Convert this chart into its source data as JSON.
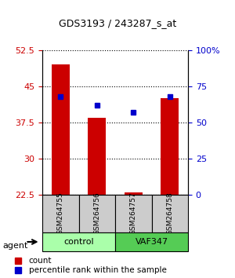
{
  "title": "GDS3193 / 243287_s_at",
  "samples": [
    "GSM264755",
    "GSM264756",
    "GSM264757",
    "GSM264758"
  ],
  "groups": [
    "control",
    "control",
    "VAF347",
    "VAF347"
  ],
  "group_labels": [
    "control",
    "VAF347"
  ],
  "group_colors": [
    "#aaffaa",
    "#55dd55"
  ],
  "bar_colors_count": [
    "#cc0000",
    "#cc0000",
    "#cc0000",
    "#cc0000"
  ],
  "count_values": [
    49.5,
    38.5,
    23.0,
    42.5
  ],
  "percentile_values": [
    68,
    62,
    57,
    68
  ],
  "ylim_left": [
    22.5,
    52.5
  ],
  "ylim_right": [
    0,
    100
  ],
  "yticks_left": [
    22.5,
    30,
    37.5,
    45,
    52.5
  ],
  "yticks_right": [
    0,
    25,
    50,
    75,
    100
  ],
  "ytick_labels_left": [
    "22.5",
    "30",
    "37.5",
    "45",
    "52.5"
  ],
  "ytick_labels_right": [
    "0",
    "25",
    "50",
    "75",
    "100%"
  ],
  "bar_bottom": 22.5,
  "count_color": "#cc0000",
  "percentile_color": "#0000cc",
  "sample_bg_color": "#cccccc",
  "legend_count_label": "count",
  "legend_percentile_label": "percentile rank within the sample",
  "agent_label": "agent"
}
